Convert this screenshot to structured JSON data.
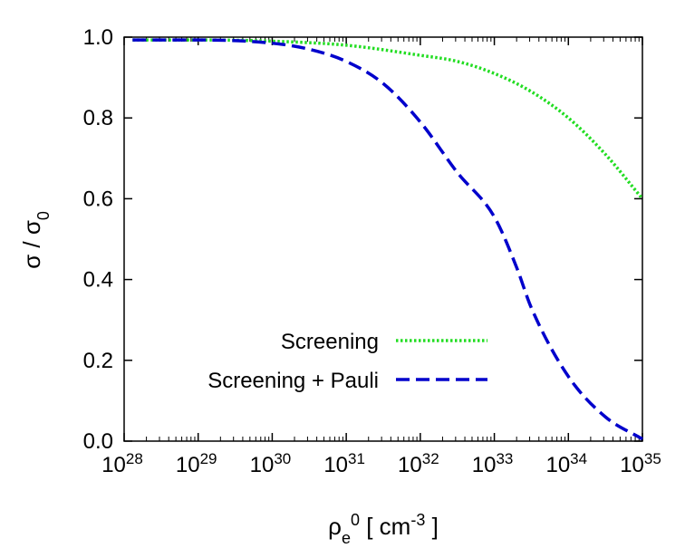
{
  "chart_data": {
    "type": "line",
    "xscale": "log",
    "xlim": [
      1e+28,
      1e+35
    ],
    "ylim": [
      0.0,
      1.0
    ],
    "grid": false,
    "legend_position": "center-right",
    "xlabel": {
      "base": "ρ",
      "sub": "e",
      "sup": "0",
      "rest": " [ cm",
      "unit_sup": "-3",
      "close": " ]"
    },
    "ylabel": {
      "sigma": "σ",
      "slash": " / ",
      "sigma0": "σ",
      "sub": "0"
    },
    "x_ticks": [
      {
        "base": "10",
        "exp": "28",
        "value": 1e+28
      },
      {
        "base": "10",
        "exp": "29",
        "value": 1e+29
      },
      {
        "base": "10",
        "exp": "30",
        "value": 1e+30
      },
      {
        "base": "10",
        "exp": "31",
        "value": 1e+31
      },
      {
        "base": "10",
        "exp": "32",
        "value": 1e+32
      },
      {
        "base": "10",
        "exp": "33",
        "value": 1e+33
      },
      {
        "base": "10",
        "exp": "34",
        "value": 1e+34
      },
      {
        "base": "10",
        "exp": "35",
        "value": 1e+35
      }
    ],
    "y_ticks": [
      {
        "label": "0.0",
        "value": 0.0
      },
      {
        "label": "0.2",
        "value": 0.2
      },
      {
        "label": "0.4",
        "value": 0.4
      },
      {
        "label": "0.6",
        "value": 0.6
      },
      {
        "label": "0.8",
        "value": 0.8
      },
      {
        "label": "1.0",
        "value": 1.0
      }
    ],
    "series": [
      {
        "name": "Screening",
        "color": "#22dd22",
        "style": "dotted",
        "x": [
          1.3e+28,
          1e+29,
          1e+30,
          1e+31,
          1e+32,
          3.16e+32,
          1e+33,
          3.16e+33,
          1e+34,
          3.16e+34,
          1e+35
        ],
        "y": [
          0.993,
          0.993,
          0.99,
          0.98,
          0.955,
          0.94,
          0.91,
          0.865,
          0.8,
          0.71,
          0.6
        ]
      },
      {
        "name": "Screening + Pauli",
        "color": "#0000cc",
        "style": "dashed",
        "x": [
          1.3e+28,
          1e+29,
          1e+30,
          3.16e+30,
          1e+31,
          3.16e+31,
          1e+32,
          3.16e+32,
          1e+33,
          2e+33,
          3.16e+33,
          1e+34,
          3.16e+34,
          1e+35
        ],
        "y": [
          0.993,
          0.993,
          0.985,
          0.97,
          0.94,
          0.885,
          0.79,
          0.665,
          0.555,
          0.43,
          0.33,
          0.16,
          0.06,
          0.005
        ]
      }
    ]
  }
}
